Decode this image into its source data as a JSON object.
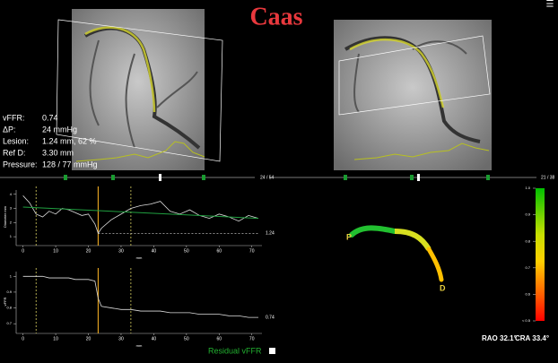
{
  "header": {
    "title": "Caas",
    "menu": "☰"
  },
  "stats": [
    {
      "label": "vFFR:",
      "value": "0.74"
    },
    {
      "label": "ΔP:",
      "value": "24 mmHg"
    },
    {
      "label": "Lesion:",
      "value": "1.24 mm, 62 %"
    },
    {
      "label": "Ref D:",
      "value": "3.30 mm"
    },
    {
      "label": "Pressure:",
      "value": "128 / 77 mmHg"
    }
  ],
  "frames": {
    "left": "24 / 54",
    "right": "21 / 38"
  },
  "profile": {
    "x": [
      0,
      2,
      4,
      6,
      8,
      10,
      12,
      14,
      16,
      18,
      20,
      22,
      23,
      24,
      27,
      30,
      33,
      36,
      39,
      42,
      45,
      48,
      51,
      54,
      57,
      60,
      63,
      66,
      69,
      72
    ],
    "xlim": [
      -1,
      72
    ],
    "xticks": [
      0,
      10,
      20,
      30,
      40,
      50,
      60,
      70
    ],
    "xlabel": "mm",
    "markers": [
      4,
      23,
      33
    ],
    "diameter": {
      "ylabel": "Diameter mm",
      "ylim": [
        0.5,
        4.3
      ],
      "yticks": [
        1,
        2,
        3,
        4
      ],
      "values": [
        3.9,
        3.4,
        2.6,
        2.4,
        2.8,
        2.6,
        3.0,
        2.9,
        2.7,
        2.5,
        2.6,
        1.9,
        1.24,
        1.6,
        2.2,
        2.6,
        3.0,
        3.2,
        3.3,
        3.5,
        2.8,
        2.6,
        2.9,
        2.5,
        2.3,
        2.6,
        2.4,
        2.1,
        2.5,
        2.3
      ],
      "reference": {
        "x": [
          0,
          72
        ],
        "values": [
          3.1,
          2.3
        ]
      },
      "annotation": "1.24"
    },
    "vffr": {
      "ylabel": "vFFR",
      "ylim": [
        0.65,
        1.03
      ],
      "yticks": [
        0.7,
        0.8,
        0.9,
        1
      ],
      "values": [
        1.0,
        1.0,
        1.0,
        1.0,
        0.99,
        0.99,
        0.99,
        0.99,
        0.98,
        0.98,
        0.98,
        0.97,
        0.86,
        0.81,
        0.8,
        0.79,
        0.79,
        0.78,
        0.78,
        0.78,
        0.77,
        0.77,
        0.77,
        0.76,
        0.76,
        0.76,
        0.75,
        0.75,
        0.74,
        0.74
      ],
      "annotation": "0.74"
    },
    "legend": "Residual vFFR"
  },
  "colorscale": {
    "ylim": [
      0.5,
      1.0
    ],
    "ticks": [
      {
        "value": 1.0,
        "label": "1.0"
      },
      0.9,
      0.8,
      0.7,
      0.6,
      {
        "value": 0.5,
        "label": "< 0.5"
      }
    ]
  },
  "view3d": {
    "proximal": "P",
    "distal": "D",
    "angles": [
      "RAO 32.1°",
      "CRA 33.4°"
    ]
  }
}
